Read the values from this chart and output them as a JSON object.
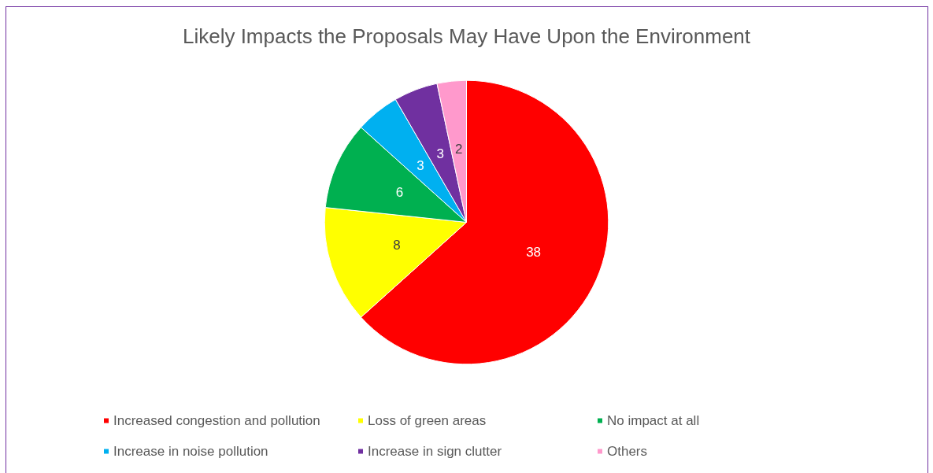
{
  "chart_data": {
    "type": "pie",
    "title": "Likely Impacts the Proposals May Have Upon the Environment",
    "categories": [
      "Increased congestion and pollution",
      "Loss of green areas",
      "No impact at all",
      "Increase in noise pollution",
      "Increase in sign clutter",
      "Others"
    ],
    "values": [
      38,
      8,
      6,
      3,
      3,
      2
    ],
    "colors": [
      "#ff0000",
      "#ffff00",
      "#00b050",
      "#00b0f0",
      "#7030a0",
      "#ff99cc"
    ],
    "data_labels": true,
    "legend": "bottom"
  }
}
